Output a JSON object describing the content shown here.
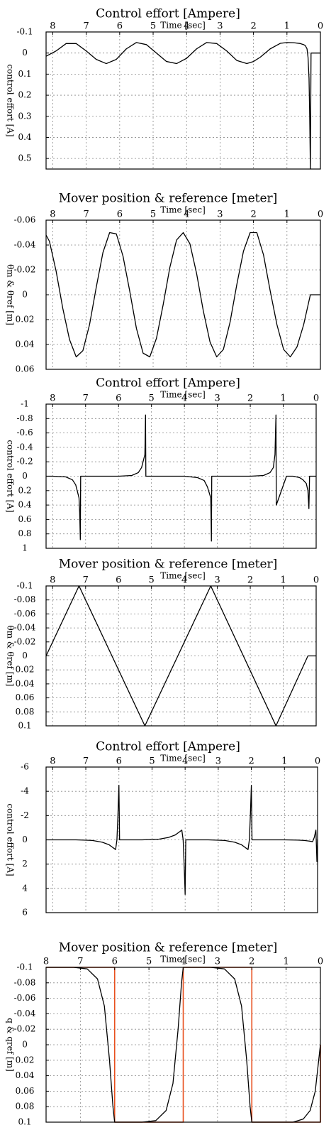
{
  "figure": {
    "mirrored": true,
    "colors": {
      "line": "#000000",
      "reference": "#e8501e",
      "grid": "#8a8a8a"
    }
  },
  "chart_data": [
    {
      "type": "line",
      "title": "Control effort [Ampere]",
      "xlabel": "Time [sec]",
      "ylabel": "control effort [A]",
      "xlim": [
        0,
        8.2
      ],
      "ylim": [
        -0.1,
        0.55
      ],
      "y_inverted": true,
      "grid": true,
      "xticks": [
        "0",
        "1",
        "2",
        "3",
        "4",
        "5",
        "6",
        "7",
        "8"
      ],
      "yticks": [
        {
          "v": -0.1,
          "label": "-0.1"
        },
        {
          "v": 0,
          "label": "0"
        },
        {
          "v": 0.1,
          "label": "0.1"
        },
        {
          "v": 0.2,
          "label": "0.2"
        },
        {
          "v": 0.3,
          "label": "0.3"
        },
        {
          "v": 0.4,
          "label": "0.4"
        },
        {
          "v": 0.5,
          "label": "0.5"
        }
      ],
      "series": [
        {
          "color": "#000000",
          "x": [
            0,
            0.28,
            0.3,
            0.32,
            0.34,
            0.37,
            0.4,
            0.45,
            0.5,
            0.6,
            0.8,
            1.0,
            1.2,
            1.5,
            1.8,
            2.0,
            2.2,
            2.5,
            2.8,
            3.1,
            3.4,
            3.7,
            4.0,
            4.3,
            4.6,
            4.9,
            5.2,
            5.5,
            5.8,
            6.1,
            6.4,
            6.7,
            7.0,
            7.3,
            7.6,
            7.9,
            8.2
          ],
          "y": [
            0,
            0,
            0.55,
            0.3,
            0.12,
            0.02,
            -0.02,
            -0.035,
            -0.04,
            -0.045,
            -0.049,
            -0.05,
            -0.046,
            -0.02,
            0.02,
            0.04,
            0.05,
            0.035,
            -0.01,
            -0.045,
            -0.05,
            -0.02,
            0.025,
            0.05,
            0.04,
            0.0,
            -0.04,
            -0.05,
            -0.02,
            0.03,
            0.05,
            0.03,
            -0.01,
            -0.045,
            -0.045,
            -0.01,
            0.015
          ]
        }
      ]
    },
    {
      "type": "line",
      "title": "Mover position & reference [meter]",
      "xlabel": "Time [sec]",
      "ylabel": "θm & θref [m]",
      "xlim": [
        0,
        8.2
      ],
      "ylim": [
        -0.06,
        0.06
      ],
      "y_inverted": true,
      "grid": true,
      "xticks": [
        "0",
        "1",
        "2",
        "3",
        "4",
        "5",
        "6",
        "7",
        "8"
      ],
      "yticks": [
        {
          "v": -0.06,
          "label": "-0.06"
        },
        {
          "v": -0.04,
          "label": "-0.04"
        },
        {
          "v": -0.02,
          "label": "-0.02"
        },
        {
          "v": 0,
          "label": "0"
        },
        {
          "v": 0.02,
          "label": "0.02"
        },
        {
          "v": 0.04,
          "label": "0.04"
        },
        {
          "v": 0.06,
          "label": "0.06"
        }
      ],
      "series": [
        {
          "color": "#000000",
          "x": [
            0,
            0.3,
            0.5,
            0.7,
            0.9,
            1.1,
            1.3,
            1.5,
            1.7,
            1.9,
            2.1,
            2.3,
            2.5,
            2.7,
            2.9,
            3.1,
            3.3,
            3.5,
            3.7,
            3.9,
            4.1,
            4.3,
            4.5,
            4.7,
            4.9,
            5.1,
            5.3,
            5.5,
            5.7,
            5.9,
            6.1,
            6.3,
            6.5,
            6.7,
            6.9,
            7.1,
            7.3,
            7.5,
            7.7,
            7.9,
            8.1,
            8.2
          ],
          "y": [
            0,
            0,
            0.024,
            0.042,
            0.05,
            0.044,
            0.024,
            -0.003,
            -0.032,
            -0.05,
            -0.05,
            -0.035,
            -0.008,
            0.022,
            0.044,
            0.05,
            0.038,
            0.013,
            -0.017,
            -0.041,
            -0.05,
            -0.044,
            -0.022,
            0.008,
            0.035,
            0.05,
            0.047,
            0.027,
            -0.003,
            -0.031,
            -0.049,
            -0.05,
            -0.034,
            -0.006,
            0.024,
            0.045,
            0.05,
            0.036,
            0.011,
            -0.019,
            -0.043,
            -0.048
          ]
        }
      ]
    },
    {
      "type": "line",
      "title": "Control effort [Ampere]",
      "xlabel": "Time [sec]",
      "ylabel": "control effort [A]",
      "xlim": [
        0,
        8.2
      ],
      "ylim": [
        -1,
        1
      ],
      "y_inverted": true,
      "grid": true,
      "xticks": [
        "0",
        "1",
        "2",
        "3",
        "4",
        "5",
        "6",
        "7",
        "8"
      ],
      "yticks": [
        {
          "v": -1,
          "label": "-1"
        },
        {
          "v": -0.8,
          "label": "-0.8"
        },
        {
          "v": -0.6,
          "label": "-0.6"
        },
        {
          "v": -0.4,
          "label": "-0.4"
        },
        {
          "v": -0.2,
          "label": "-0.2"
        },
        {
          "v": 0,
          "label": "0"
        },
        {
          "v": 0.2,
          "label": "0.2"
        },
        {
          "v": 0.4,
          "label": "0.4"
        },
        {
          "v": 0.6,
          "label": "0.6"
        },
        {
          "v": 0.8,
          "label": "0.8"
        },
        {
          "v": 1,
          "label": "1"
        }
      ],
      "series": [
        {
          "color": "#000000",
          "x": [
            0,
            0.2,
            0.22,
            0.25,
            0.3,
            0.4,
            0.5,
            0.7,
            0.9,
            1.21,
            1.22,
            1.25,
            1.3,
            1.4,
            1.6,
            2.0,
            2.5,
            3.17,
            3.18,
            3.2,
            3.3,
            3.4,
            3.6,
            4.0,
            4.5,
            5.17,
            5.18,
            5.2,
            5.3,
            5.4,
            5.6,
            6.0,
            6.5,
            7.15,
            7.16,
            7.18,
            7.2,
            7.3,
            7.4,
            7.6,
            8.0,
            8.2
          ],
          "y": [
            0,
            0,
            0.45,
            0.2,
            0.1,
            0.05,
            0.02,
            0,
            0,
            0.4,
            -0.85,
            -0.3,
            -0.12,
            -0.05,
            -0.01,
            0,
            0,
            0,
            0.9,
            0.3,
            0.15,
            0.06,
            0.02,
            0,
            0,
            0,
            -0.85,
            -0.3,
            -0.12,
            -0.05,
            -0.01,
            0,
            0,
            0,
            0.88,
            0.5,
            0.3,
            0.12,
            0.05,
            0.01,
            0,
            0
          ]
        }
      ]
    },
    {
      "type": "line",
      "title": "Mover position & reference [meter]",
      "xlabel": "Time [sec]",
      "ylabel": "θm & θref [m]",
      "xlim": [
        0,
        8.2
      ],
      "ylim": [
        -0.1,
        0.1
      ],
      "y_inverted": true,
      "grid": true,
      "xticks": [
        "0",
        "1",
        "2",
        "3",
        "4",
        "5",
        "6",
        "7",
        "8"
      ],
      "yticks": [
        {
          "v": -0.1,
          "label": "-0.1"
        },
        {
          "v": -0.08,
          "label": "-0.08"
        },
        {
          "v": -0.06,
          "label": "-0.06"
        },
        {
          "v": -0.04,
          "label": "-0.04"
        },
        {
          "v": -0.02,
          "label": "-0.02"
        },
        {
          "v": 0,
          "label": "0"
        },
        {
          "v": 0.02,
          "label": "0.02"
        },
        {
          "v": 0.04,
          "label": "0.04"
        },
        {
          "v": 0.06,
          "label": "0.06"
        },
        {
          "v": 0.08,
          "label": "0.08"
        },
        {
          "v": 0.1,
          "label": "0.1"
        }
      ],
      "series": [
        {
          "color": "#000000",
          "x": [
            0,
            0.25,
            1.22,
            3.2,
            5.2,
            7.2,
            8.2
          ],
          "y": [
            0,
            0,
            0.1,
            -0.1,
            0.1,
            -0.1,
            0
          ]
        }
      ]
    },
    {
      "type": "line",
      "title": "Control effort [Ampere]",
      "xlabel": "Time [sec]",
      "ylabel": "control effort [A]",
      "xlim": [
        0,
        8.2
      ],
      "ylim": [
        -6,
        6
      ],
      "y_inverted": true,
      "grid": true,
      "xticks": [
        "0",
        "1",
        "2",
        "3",
        "4",
        "5",
        "6",
        "7",
        "8"
      ],
      "yticks": [
        {
          "v": -6,
          "label": "-6"
        },
        {
          "v": -4,
          "label": "-4"
        },
        {
          "v": -2,
          "label": "-2"
        },
        {
          "v": 0,
          "label": "0"
        },
        {
          "v": 2,
          "label": "2"
        },
        {
          "v": 4,
          "label": "4"
        },
        {
          "v": 6,
          "label": "6"
        }
      ],
      "series": [
        {
          "color": "#000000",
          "x": [
            0,
            0.02,
            0.05,
            0.1,
            0.15,
            0.25,
            0.4,
            0.6,
            1.0,
            1.5,
            1.98,
            2.0,
            2.03,
            2.06,
            2.1,
            2.2,
            2.3,
            2.5,
            2.8,
            3.3,
            3.98,
            4.0,
            4.03,
            4.06,
            4.1,
            4.2,
            4.3,
            4.5,
            4.8,
            5.3,
            5.98,
            6.0,
            6.03,
            6.06,
            6.1,
            6.2,
            6.3,
            6.5,
            6.8,
            7.3,
            8.2
          ],
          "y": [
            0,
            1.8,
            -0.8,
            -0.2,
            0.15,
            0.1,
            0.05,
            0.02,
            0,
            0,
            0,
            -4.5,
            -2,
            0,
            0.8,
            0.6,
            0.4,
            0.2,
            0.05,
            0,
            0,
            4.5,
            2,
            0,
            -0.8,
            -0.6,
            -0.4,
            -0.2,
            -0.05,
            0,
            0,
            -4.5,
            -2,
            0,
            0.8,
            0.6,
            0.4,
            0.2,
            0.05,
            0,
            0
          ]
        }
      ]
    },
    {
      "type": "line",
      "title": "Mover position & reference [meter]",
      "xlabel": "Time [sec]",
      "ylabel": "q & qref [m]",
      "xlim": [
        0,
        8
      ],
      "ylim": [
        -0.1,
        0.1
      ],
      "y_inverted": true,
      "grid": true,
      "xticks": [
        "0",
        "1",
        "2",
        "3",
        "4",
        "5",
        "6",
        "7",
        "8"
      ],
      "yticks": [
        {
          "v": -0.1,
          "label": "-0.1"
        },
        {
          "v": -0.08,
          "label": "-0.08"
        },
        {
          "v": -0.06,
          "label": "-0.06"
        },
        {
          "v": -0.04,
          "label": "-0.04"
        },
        {
          "v": -0.02,
          "label": "-0.02"
        },
        {
          "v": 0,
          "label": "0"
        },
        {
          "v": 0.02,
          "label": "0.02"
        },
        {
          "v": 0.04,
          "label": "0.04"
        },
        {
          "v": 0.06,
          "label": "0.06"
        },
        {
          "v": 0.08,
          "label": "0.08"
        },
        {
          "v": 0.1,
          "label": "0.1"
        }
      ],
      "series": [
        {
          "color": "#e8501e",
          "x": [
            0,
            0,
            2,
            2,
            4,
            4,
            6,
            6,
            8
          ],
          "y": [
            0,
            0.1,
            0.1,
            -0.1,
            -0.1,
            0.1,
            0.1,
            -0.1,
            -0.1
          ]
        },
        {
          "color": "#000000",
          "x": [
            0,
            0.05,
            0.15,
            0.3,
            0.5,
            0.8,
            1.2,
            2.0,
            2.05,
            2.15,
            2.3,
            2.5,
            2.8,
            3.2,
            4.0,
            4.05,
            4.15,
            4.3,
            4.5,
            4.8,
            5.2,
            6.0,
            6.05,
            6.15,
            6.3,
            6.5,
            6.8,
            7.2,
            8.0
          ],
          "y": [
            0,
            0.02,
            0.06,
            0.085,
            0.096,
            0.1,
            0.1,
            0.1,
            0.08,
            0.02,
            -0.05,
            -0.085,
            -0.098,
            -0.1,
            -0.1,
            -0.08,
            -0.02,
            0.05,
            0.085,
            0.098,
            0.1,
            0.1,
            0.08,
            0.02,
            -0.05,
            -0.085,
            -0.098,
            -0.1,
            -0.1
          ]
        }
      ]
    }
  ]
}
